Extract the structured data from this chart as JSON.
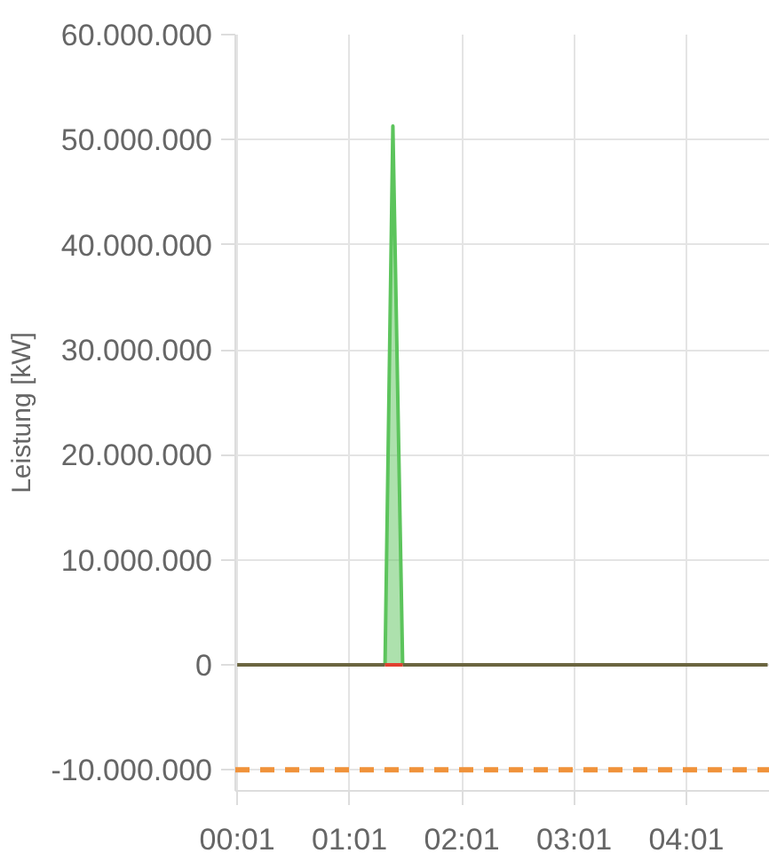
{
  "chart_data": {
    "type": "line",
    "ylabel": "Leistung [kW]",
    "xlim": [
      0.0,
      4.76
    ],
    "xticks": [
      {
        "value": 0.0167,
        "label": "00:01"
      },
      {
        "value": 1.0167,
        "label": "01:01"
      },
      {
        "value": 2.0167,
        "label": "02:01"
      },
      {
        "value": 3.0167,
        "label": "03:01"
      },
      {
        "value": 4.0167,
        "label": "04:01"
      }
    ],
    "ylim": [
      -12000000,
      60000000
    ],
    "yticks": [
      {
        "value": -10000000,
        "label": "-10.000.000"
      },
      0,
      {
        "value": 10000000,
        "label": "10.000.000"
      },
      {
        "value": 20000000,
        "label": "20.000.000"
      },
      {
        "value": 30000000,
        "label": "30.000.000"
      },
      {
        "value": 40000000,
        "label": "40.000.000"
      },
      {
        "value": 50000000,
        "label": "50.000.000"
      },
      {
        "value": 60000000,
        "label": "60.000.000"
      }
    ],
    "series": [
      {
        "type": "area",
        "color": "#5cc45c",
        "x": [
          1.333,
          1.403,
          1.49
        ],
        "values": [
          0,
          51300000,
          0
        ]
      },
      {
        "color": "#6b6540",
        "x": [
          0.0167,
          1.333,
          1.41,
          1.49,
          4.74
        ],
        "values": [
          0,
          0,
          null,
          0,
          0
        ]
      },
      {
        "color": "#e04030",
        "x": [
          1.333,
          1.49
        ],
        "values": [
          0,
          0
        ]
      }
    ],
    "ref_lines": [
      {
        "axis": "y",
        "value": -10000000,
        "color": "#f0923a",
        "line_style": "dashed"
      }
    ],
    "grid": true,
    "marker": "none",
    "line_style": "solid"
  }
}
